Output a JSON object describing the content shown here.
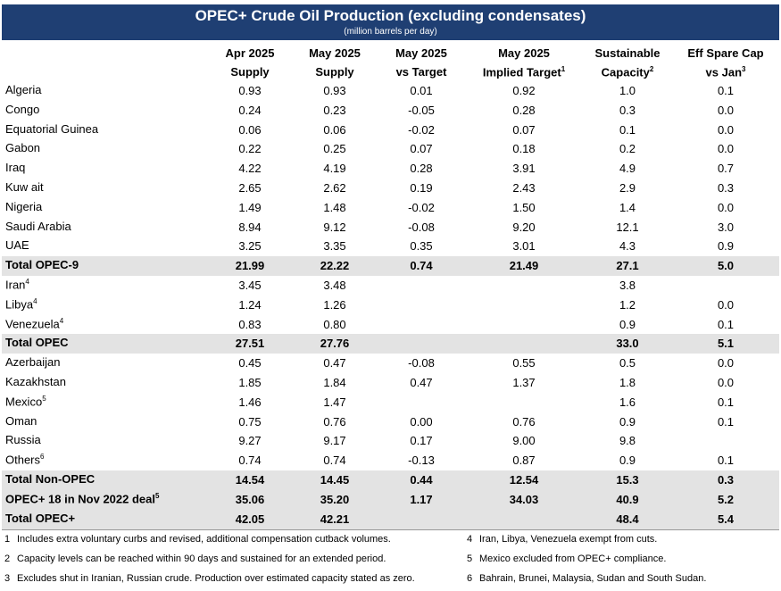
{
  "header": {
    "title": "OPEC+ Crude Oil Production (excluding condensates)",
    "subtitle": "(million barrels per day)"
  },
  "table": {
    "columns": [
      {
        "line1": "Apr 2025",
        "line2": "Supply"
      },
      {
        "line1": "May 2025",
        "line2": "Supply"
      },
      {
        "line1": "May 2025",
        "line2": "vs Target"
      },
      {
        "line1": "May 2025",
        "line2": "Implied Target",
        "note": "1"
      },
      {
        "line1": "Sustainable",
        "line2": "Capacity",
        "note": "2"
      },
      {
        "line1": "Eff Spare Cap",
        "line2": "vs Jan",
        "note": "3"
      }
    ],
    "rows": [
      {
        "name": "Algeria",
        "cells": [
          "0.93",
          "0.93",
          "0.01",
          "0.92",
          "1.0",
          "0.1"
        ]
      },
      {
        "name": "Congo",
        "cells": [
          "0.24",
          "0.23",
          "-0.05",
          "0.28",
          "0.3",
          "0.0"
        ]
      },
      {
        "name": "Equatorial Guinea",
        "cells": [
          "0.06",
          "0.06",
          "-0.02",
          "0.07",
          "0.1",
          "0.0"
        ]
      },
      {
        "name": "Gabon",
        "cells": [
          "0.22",
          "0.25",
          "0.07",
          "0.18",
          "0.2",
          "0.0"
        ]
      },
      {
        "name": "Iraq",
        "cells": [
          "4.22",
          "4.19",
          "0.28",
          "3.91",
          "4.9",
          "0.7"
        ]
      },
      {
        "name": "Kuw ait",
        "cells": [
          "2.65",
          "2.62",
          "0.19",
          "2.43",
          "2.9",
          "0.3"
        ]
      },
      {
        "name": "Nigeria",
        "cells": [
          "1.49",
          "1.48",
          "-0.02",
          "1.50",
          "1.4",
          "0.0"
        ]
      },
      {
        "name": "Saudi Arabia",
        "cells": [
          "8.94",
          "9.12",
          "-0.08",
          "9.20",
          "12.1",
          "3.0"
        ]
      },
      {
        "name": "UAE",
        "cells": [
          "3.25",
          "3.35",
          "0.35",
          "3.01",
          "4.3",
          "0.9"
        ]
      },
      {
        "name": "Total OPEC-9",
        "total": true,
        "cells": [
          "21.99",
          "22.22",
          "0.74",
          "21.49",
          "27.1",
          "5.0"
        ]
      },
      {
        "name": "Iran",
        "note": "4",
        "cells": [
          "3.45",
          "3.48",
          null,
          null,
          "3.8",
          null
        ]
      },
      {
        "name": "Libya",
        "note": "4",
        "cells": [
          "1.24",
          "1.26",
          null,
          null,
          "1.2",
          "0.0"
        ]
      },
      {
        "name": "Venezuela",
        "note": "4",
        "cells": [
          "0.83",
          "0.80",
          null,
          null,
          "0.9",
          "0.1"
        ]
      },
      {
        "name": "Total OPEC",
        "total": true,
        "cells": [
          "27.51",
          "27.76",
          null,
          null,
          "33.0",
          "5.1"
        ]
      },
      {
        "name": "Azerbaijan",
        "cells": [
          "0.45",
          "0.47",
          "-0.08",
          "0.55",
          "0.5",
          "0.0"
        ]
      },
      {
        "name": "Kazakhstan",
        "cells": [
          "1.85",
          "1.84",
          "0.47",
          "1.37",
          "1.8",
          "0.0"
        ]
      },
      {
        "name": "Mexico",
        "note": "5",
        "cells": [
          "1.46",
          "1.47",
          null,
          null,
          "1.6",
          "0.1"
        ]
      },
      {
        "name": "Oman",
        "cells": [
          "0.75",
          "0.76",
          "0.00",
          "0.76",
          "0.9",
          "0.1"
        ]
      },
      {
        "name": "Russia",
        "cells": [
          "9.27",
          "9.17",
          "0.17",
          "9.00",
          "9.8",
          null
        ]
      },
      {
        "name": "Others",
        "note": "6",
        "cells": [
          "0.74",
          "0.74",
          "-0.13",
          "0.87",
          "0.9",
          "0.1"
        ]
      },
      {
        "name": "Total Non-OPEC",
        "total": true,
        "cells": [
          "14.54",
          "14.45",
          "0.44",
          "12.54",
          "15.3",
          "0.3"
        ]
      },
      {
        "name": "OPEC+ 18 in Nov 2022 deal",
        "note": "5",
        "total": true,
        "cells": [
          "35.06",
          "35.20",
          "1.17",
          "34.03",
          "40.9",
          "5.2"
        ]
      },
      {
        "name": "Total OPEC+",
        "total": true,
        "cells": [
          "42.05",
          "42.21",
          null,
          null,
          "48.4",
          "5.4"
        ]
      }
    ]
  },
  "footnotes": [
    {
      "number": "1",
      "text": "Includes extra voluntary curbs and revised, additional compensation cutback volumes."
    },
    {
      "number": "2",
      "text": "Capacity levels can be reached within 90 days and sustained for an extended period."
    },
    {
      "number": "3",
      "text": "Excludes shut in Iranian, Russian crude. Production over estimated capacity stated as zero."
    },
    {
      "number": "4",
      "text": "Iran, Libya, Venezuela exempt from cuts."
    },
    {
      "number": "5",
      "text": "Mexico excluded from OPEC+ compliance."
    },
    {
      "number": "6",
      "text": "Bahrain, Brunei, Malaysia, Sudan and South Sudan."
    }
  ]
}
